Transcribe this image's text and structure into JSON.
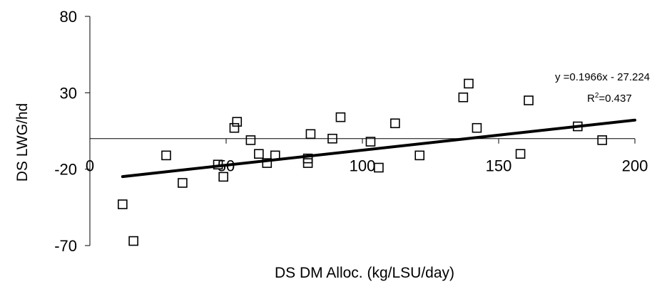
{
  "chart_data": {
    "type": "scatter",
    "xlabel": "DS DM Alloc. (kg/LSU/day)",
    "ylabel": "DS LWG/hd",
    "xlim": [
      0,
      200
    ],
    "ylim": [
      -70,
      80
    ],
    "x_ticks": [
      "0",
      "50",
      "100",
      "150",
      "200"
    ],
    "y_ticks": [
      "80",
      "30",
      "-20",
      "-70"
    ],
    "marker": "open-square",
    "points": [
      {
        "x": 12,
        "y": -43
      },
      {
        "x": 16,
        "y": -67
      },
      {
        "x": 28,
        "y": -11
      },
      {
        "x": 34,
        "y": -29
      },
      {
        "x": 47,
        "y": -17
      },
      {
        "x": 49,
        "y": -25
      },
      {
        "x": 53,
        "y": 7
      },
      {
        "x": 54,
        "y": 11
      },
      {
        "x": 59,
        "y": -1
      },
      {
        "x": 62,
        "y": -10
      },
      {
        "x": 65,
        "y": -16
      },
      {
        "x": 68,
        "y": -11
      },
      {
        "x": 80,
        "y": -13
      },
      {
        "x": 80,
        "y": -16
      },
      {
        "x": 81,
        "y": 3
      },
      {
        "x": 89,
        "y": 0
      },
      {
        "x": 92,
        "y": 14
      },
      {
        "x": 103,
        "y": -2
      },
      {
        "x": 106,
        "y": -19
      },
      {
        "x": 112,
        "y": 10
      },
      {
        "x": 121,
        "y": -11
      },
      {
        "x": 137,
        "y": 27
      },
      {
        "x": 139,
        "y": 36
      },
      {
        "x": 142,
        "y": 7
      },
      {
        "x": 158,
        "y": -10
      },
      {
        "x": 161,
        "y": 25
      },
      {
        "x": 179,
        "y": 8
      },
      {
        "x": 188,
        "y": -1
      }
    ],
    "trendline": {
      "slope": 0.1966,
      "intercept": -27.224,
      "equation": "y =0.1966x - 27.224",
      "r2_prefix": "R",
      "r2_sup": "2",
      "r2_value": "=0.437"
    }
  }
}
